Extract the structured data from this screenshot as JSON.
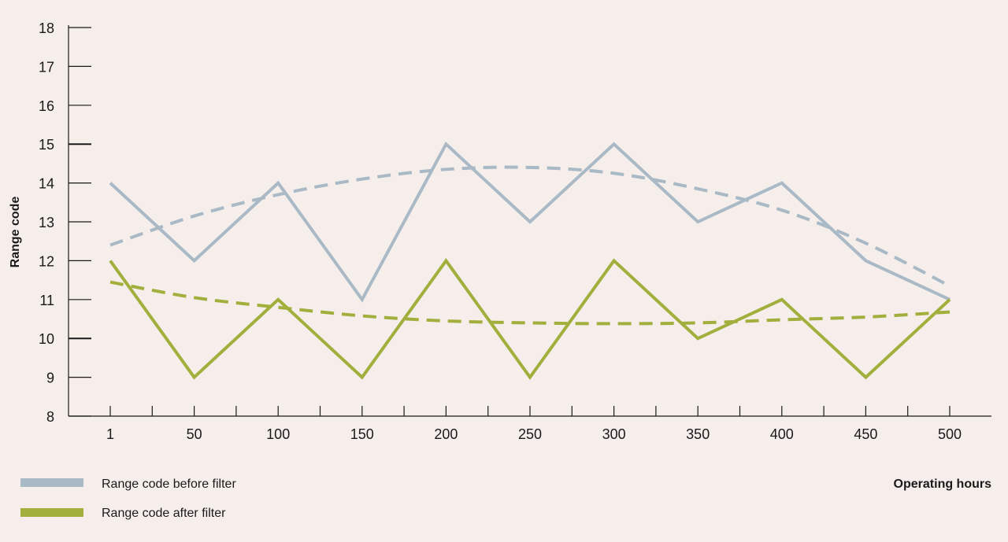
{
  "chart_data": {
    "type": "line",
    "xlabel": "Operating hours",
    "ylabel": "Range code",
    "ylim": [
      8,
      18
    ],
    "yticks": [
      8,
      9,
      10,
      11,
      12,
      13,
      14,
      15,
      16,
      17,
      18
    ],
    "categories": [
      "1",
      "50",
      "100",
      "150",
      "200",
      "250",
      "300",
      "350",
      "400",
      "450",
      "500"
    ],
    "series": [
      {
        "name": "Range code before filter",
        "color": "#a9b9c6",
        "values": [
          14,
          12,
          14,
          11,
          15,
          13,
          15,
          13,
          14,
          12,
          11
        ],
        "trend": [
          12.4,
          13.15,
          13.7,
          14.1,
          14.35,
          14.4,
          14.25,
          13.85,
          13.3,
          12.45,
          11.35
        ]
      },
      {
        "name": "Range code after filter",
        "color": "#a3af3c",
        "values": [
          12,
          9,
          11,
          9,
          12,
          9,
          12,
          10,
          11,
          9,
          11
        ],
        "trend": [
          11.45,
          11.05,
          10.8,
          10.58,
          10.45,
          10.4,
          10.38,
          10.4,
          10.48,
          10.55,
          10.68
        ]
      }
    ],
    "legend_position": "bottom-left",
    "grid": false
  }
}
